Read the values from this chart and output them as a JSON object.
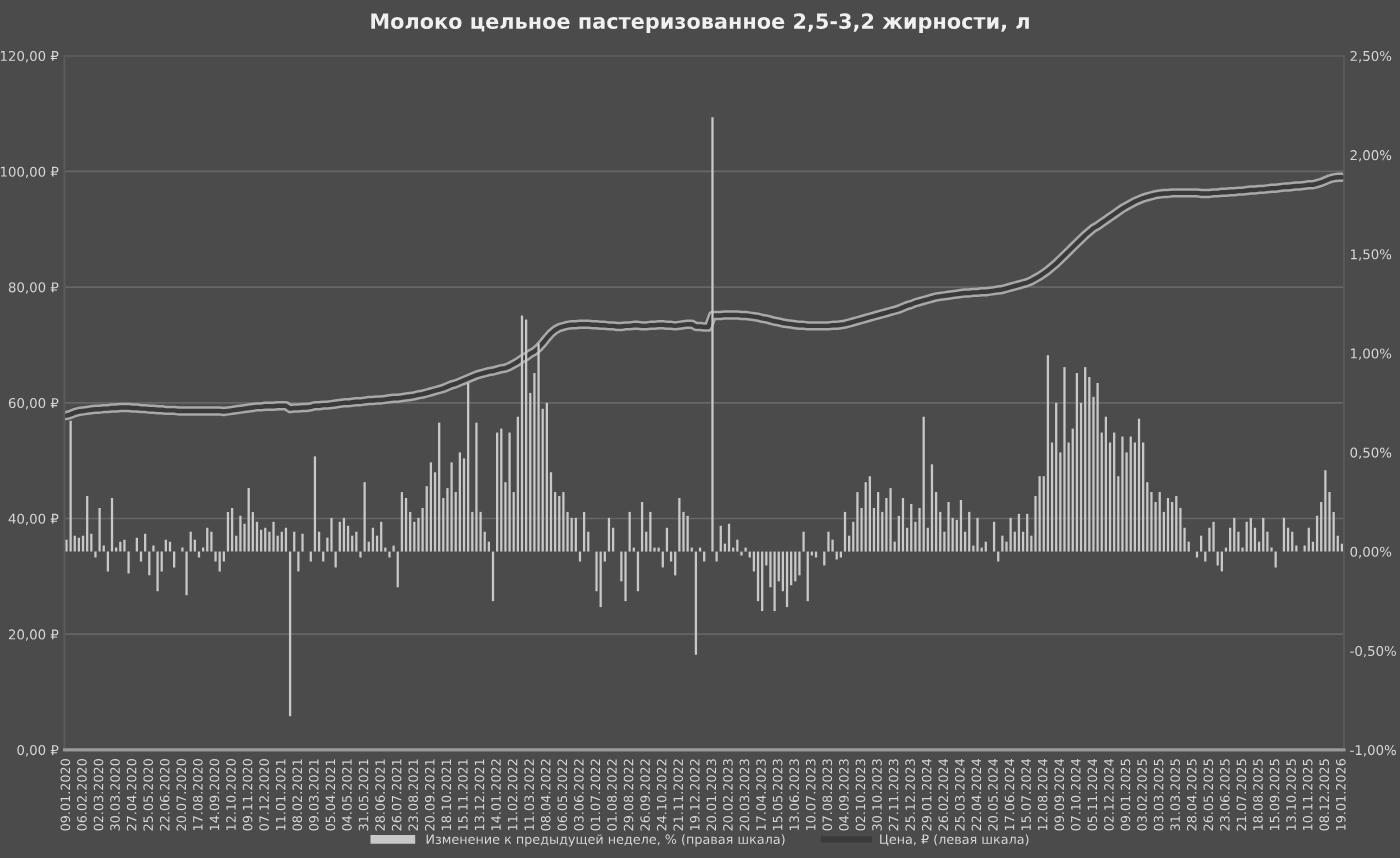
{
  "chart_data": {
    "type": "bar",
    "title": "Молоко цельное пастеризованное 2,5-3,2 жирности, л",
    "categories": [
      "09.01.2020",
      null,
      null,
      null,
      "06.02.2020",
      null,
      null,
      null,
      "02.03.2020",
      null,
      null,
      null,
      "30.03.2020",
      null,
      null,
      null,
      "27.04.2020",
      null,
      null,
      null,
      "25.05.2020",
      null,
      null,
      null,
      "22.06.2020",
      null,
      null,
      null,
      "20.07.2020",
      null,
      null,
      null,
      "17.08.2020",
      null,
      null,
      null,
      "14.09.2020",
      null,
      null,
      null,
      "12.10.2020",
      null,
      null,
      null,
      "09.11.2020",
      null,
      null,
      null,
      "07.12.2020",
      null,
      null,
      null,
      "11.01.2021",
      null,
      null,
      null,
      "08.02.2021",
      null,
      null,
      null,
      "09.03.2021",
      null,
      null,
      null,
      "05.04.2021",
      null,
      null,
      null,
      "04.05.2021",
      null,
      null,
      null,
      "31.05.2021",
      null,
      null,
      null,
      "28.06.2021",
      null,
      null,
      null,
      "26.07.2021",
      null,
      null,
      null,
      "23.08.2021",
      null,
      null,
      null,
      "20.09.2021",
      null,
      null,
      null,
      "18.10.2021",
      null,
      null,
      null,
      "15.11.2021",
      null,
      null,
      null,
      "13.12.2021",
      null,
      null,
      null,
      "14.01.2022",
      null,
      null,
      null,
      "11.02.2022",
      null,
      null,
      null,
      "11.03.2022",
      null,
      null,
      null,
      "08.04.2022",
      null,
      null,
      null,
      "06.05.2022",
      null,
      null,
      null,
      "03.06.2022",
      null,
      null,
      null,
      "01.07.2022",
      null,
      null,
      null,
      "01.08.2022",
      null,
      null,
      null,
      "29.08.2022",
      null,
      null,
      null,
      "26.09.2022",
      null,
      null,
      null,
      "24.10.2022",
      null,
      null,
      null,
      "21.11.2022",
      null,
      null,
      null,
      "19.12.2022",
      null,
      null,
      null,
      "20.01.2023",
      null,
      null,
      null,
      "20.02.2023",
      null,
      null,
      null,
      "20.03.2023",
      null,
      null,
      null,
      "17.04.2023",
      null,
      null,
      null,
      "15.05.2023",
      null,
      null,
      null,
      "13.06.2023",
      null,
      null,
      null,
      "10.07.2023",
      null,
      null,
      null,
      "07.08.2023",
      null,
      null,
      null,
      "04.09.2023",
      null,
      null,
      null,
      "02.10.2023",
      null,
      null,
      null,
      "30.10.2023",
      null,
      null,
      null,
      "27.11.2023",
      null,
      null,
      null,
      "25.12.2023",
      null,
      null,
      null,
      "29.01.2024",
      null,
      null,
      null,
      "26.02.2024",
      null,
      null,
      null,
      "25.03.2024",
      null,
      null,
      null,
      "22.04.2024",
      null,
      null,
      null,
      "20.05.2024",
      null,
      null,
      null,
      "17.06.2024",
      null,
      null,
      null,
      "15.07.2024",
      null,
      null,
      null,
      "12.08.2024",
      null,
      null,
      null,
      "09.09.2024",
      null,
      null,
      null,
      "07.10.2024",
      null,
      null,
      null,
      "05.11.2024",
      null,
      null,
      null,
      "02.12.2024",
      null,
      null,
      null,
      "09.01.2025",
      null,
      null,
      null,
      "03.02.2025",
      null,
      null,
      null,
      "03.03.2025",
      null,
      null,
      null,
      "31.03.2025",
      null,
      null,
      null,
      "28.04.2025",
      null,
      null,
      null,
      "26.05.2025",
      null,
      null,
      null,
      "23.06.2025",
      null,
      null,
      null,
      "21.07.2025",
      null,
      null,
      null,
      "18.08.2025",
      null,
      null,
      null,
      "15.09.2025",
      null,
      null,
      null,
      "13.10.2025",
      null,
      null,
      null,
      "10.11.2025",
      null,
      null,
      null,
      "08.12.2025",
      null,
      null,
      null,
      "19.01.2026"
    ],
    "series": [
      {
        "name": "Изменение к предыдущей неделе, % (правая шкала)",
        "axis": "y2",
        "color": "#c8c8c8",
        "values": [
          0.06,
          0.66,
          0.08,
          0.07,
          0.08,
          0.28,
          0.09,
          -0.03,
          0.22,
          0.03,
          -0.1,
          0.27,
          0.02,
          0.05,
          0.06,
          -0.11,
          0.0,
          0.07,
          -0.05,
          0.09,
          -0.12,
          0.03,
          -0.2,
          -0.1,
          0.06,
          0.05,
          -0.08,
          0.0,
          0.02,
          -0.22,
          0.1,
          0.06,
          -0.03,
          0.02,
          0.12,
          0.1,
          -0.05,
          -0.1,
          -0.05,
          0.2,
          0.22,
          0.08,
          0.18,
          0.14,
          0.32,
          0.2,
          0.15,
          0.11,
          0.12,
          0.1,
          0.15,
          0.08,
          0.1,
          0.12,
          -0.83,
          0.1,
          -0.1,
          0.09,
          0.0,
          -0.05,
          0.48,
          0.1,
          -0.05,
          0.07,
          0.17,
          -0.08,
          0.15,
          0.17,
          0.13,
          0.08,
          0.1,
          -0.03,
          0.35,
          0.05,
          0.12,
          0.08,
          0.15,
          0.02,
          -0.03,
          0.03,
          -0.18,
          0.3,
          0.27,
          0.2,
          0.15,
          0.17,
          0.22,
          0.33,
          0.45,
          0.4,
          0.65,
          0.27,
          0.32,
          0.45,
          0.3,
          0.5,
          0.47,
          0.85,
          0.2,
          0.65,
          0.2,
          0.1,
          0.05,
          -0.25,
          0.6,
          0.62,
          0.35,
          0.6,
          0.3,
          0.68,
          1.19,
          1.17,
          0.8,
          0.9,
          1.05,
          0.72,
          0.75,
          0.4,
          0.3,
          0.28,
          0.3,
          0.2,
          0.17,
          0.17,
          -0.05,
          0.2,
          0.1,
          0.0,
          -0.2,
          -0.28,
          -0.05,
          0.17,
          0.12,
          0.0,
          -0.15,
          -0.25,
          0.2,
          0.02,
          -0.2,
          0.25,
          0.1,
          0.2,
          0.02,
          0.02,
          -0.08,
          0.12,
          -0.05,
          -0.12,
          0.27,
          0.2,
          0.18,
          0.02,
          -0.52,
          0.02,
          -0.05,
          0.0,
          2.19,
          -0.05,
          0.13,
          0.04,
          0.14,
          0.02,
          0.06,
          -0.02,
          0.02,
          -0.03,
          -0.1,
          -0.25,
          -0.3,
          -0.07,
          -0.18,
          -0.3,
          -0.15,
          -0.2,
          -0.28,
          -0.17,
          -0.15,
          -0.12,
          0.1,
          -0.25,
          -0.02,
          -0.03,
          0.0,
          -0.07,
          0.1,
          0.06,
          -0.04,
          -0.03,
          0.2,
          0.08,
          0.15,
          0.3,
          0.22,
          0.35,
          0.38,
          0.22,
          0.3,
          0.2,
          0.27,
          0.32,
          0.05,
          0.18,
          0.27,
          0.12,
          0.24,
          0.15,
          0.22,
          0.68,
          0.12,
          0.44,
          0.3,
          0.2,
          0.1,
          0.25,
          0.17,
          0.16,
          0.26,
          0.1,
          0.2,
          0.03,
          0.17,
          0.02,
          0.05,
          0.0,
          0.15,
          -0.05,
          0.08,
          0.05,
          0.17,
          0.1,
          0.19,
          0.1,
          0.19,
          0.08,
          0.28,
          0.38,
          0.38,
          0.99,
          0.55,
          0.75,
          0.5,
          0.93,
          0.55,
          0.62,
          0.9,
          0.75,
          0.93,
          0.88,
          0.78,
          0.85,
          0.6,
          0.68,
          0.55,
          0.6,
          0.38,
          0.58,
          0.5,
          0.58,
          0.55,
          0.67,
          0.55,
          0.35,
          0.3,
          0.25,
          0.3,
          0.2,
          0.27,
          0.25,
          0.28,
          0.22,
          0.12,
          0.05,
          0.0,
          -0.03,
          0.08,
          -0.05,
          0.12,
          0.15,
          -0.07,
          -0.1,
          0.02,
          0.12,
          0.17,
          0.1,
          0.02,
          0.15,
          0.17,
          0.12,
          0.05,
          0.17,
          0.1,
          0.02,
          -0.08,
          0.0,
          0.17,
          0.12,
          0.1,
          0.03,
          0.0,
          0.03,
          0.12,
          0.05,
          0.18,
          0.25,
          0.41,
          0.3,
          0.2,
          0.08,
          0.04
        ]
      },
      {
        "name": "Цена, ₽ (левая шкала)",
        "type": "line",
        "color": "#3a3a3a",
        "values": [
          57.8,
          58.0,
          58.3,
          58.5,
          58.6,
          58.7,
          58.8,
          58.9,
          58.9,
          59.0,
          59.0,
          59.1,
          59.1,
          59.2,
          59.2,
          59.2,
          59.1,
          59.1,
          59.0,
          59.0,
          58.9,
          58.9,
          58.8,
          58.8,
          58.7,
          58.7,
          58.7,
          58.6,
          58.6,
          58.6,
          58.6,
          58.6,
          58.6,
          58.6,
          58.6,
          58.6,
          58.6,
          58.6,
          58.5,
          58.6,
          58.7,
          58.8,
          58.9,
          59.0,
          59.1,
          59.2,
          59.3,
          59.3,
          59.4,
          59.4,
          59.4,
          59.5,
          59.5,
          59.5,
          59.0,
          59.1,
          59.1,
          59.2,
          59.2,
          59.3,
          59.5,
          59.5,
          59.6,
          59.6,
          59.7,
          59.8,
          59.9,
          60.0,
          60.0,
          60.1,
          60.2,
          60.2,
          60.3,
          60.4,
          60.4,
          60.5,
          60.5,
          60.6,
          60.7,
          60.8,
          60.8,
          60.9,
          61.0,
          61.1,
          61.2,
          61.4,
          61.5,
          61.7,
          61.9,
          62.1,
          62.3,
          62.5,
          62.8,
          63.1,
          63.3,
          63.6,
          63.9,
          64.2,
          64.5,
          64.8,
          65.0,
          65.2,
          65.4,
          65.5,
          65.7,
          65.9,
          66.0,
          66.3,
          66.7,
          67.1,
          67.6,
          68.0,
          68.5,
          68.9,
          69.5,
          70.3,
          71.2,
          72.0,
          72.6,
          73.0,
          73.2,
          73.4,
          73.5,
          73.5,
          73.6,
          73.6,
          73.6,
          73.5,
          73.5,
          73.4,
          73.4,
          73.3,
          73.3,
          73.2,
          73.2,
          73.3,
          73.3,
          73.4,
          73.4,
          73.3,
          73.3,
          73.4,
          73.4,
          73.5,
          73.5,
          73.4,
          73.4,
          73.3,
          73.4,
          73.5,
          73.6,
          73.6,
          73.2,
          73.2,
          73.1,
          73.1,
          75.1,
          75.1,
          75.1,
          75.2,
          75.2,
          75.2,
          75.2,
          75.1,
          75.1,
          75.0,
          74.9,
          74.8,
          74.6,
          74.5,
          74.3,
          74.1,
          74.0,
          73.8,
          73.7,
          73.6,
          73.5,
          73.4,
          73.4,
          73.3,
          73.3,
          73.3,
          73.3,
          73.3,
          73.3,
          73.4,
          73.4,
          73.5,
          73.6,
          73.8,
          74.0,
          74.2,
          74.4,
          74.6,
          74.8,
          75.0,
          75.2,
          75.4,
          75.6,
          75.8,
          76.0,
          76.2,
          76.5,
          76.8,
          77.0,
          77.3,
          77.5,
          77.7,
          77.9,
          78.1,
          78.3,
          78.4,
          78.5,
          78.6,
          78.7,
          78.8,
          78.9,
          79.0,
          79.0,
          79.1,
          79.1,
          79.2,
          79.2,
          79.3,
          79.4,
          79.5,
          79.6,
          79.8,
          80.0,
          80.2,
          80.4,
          80.6,
          80.8,
          81.1,
          81.5,
          81.9,
          82.4,
          82.9,
          83.5,
          84.1,
          84.8,
          85.5,
          86.2,
          86.9,
          87.6,
          88.3,
          89.0,
          89.6,
          90.2,
          90.6,
          91.1,
          91.6,
          92.1,
          92.6,
          93.1,
          93.6,
          94.0,
          94.4,
          94.8,
          95.1,
          95.4,
          95.6,
          95.8,
          96.0,
          96.1,
          96.2,
          96.2,
          96.3,
          96.3,
          96.3,
          96.3,
          96.3,
          96.3,
          96.3,
          96.2,
          96.2,
          96.2,
          96.3,
          96.3,
          96.4,
          96.4,
          96.5,
          96.5,
          96.6,
          96.6,
          96.7,
          96.8,
          96.8,
          96.9,
          96.9,
          97.0,
          97.1,
          97.1,
          97.2,
          97.3,
          97.3,
          97.4,
          97.5,
          97.5,
          97.6,
          97.7,
          97.7,
          97.9,
          98.1,
          98.4,
          98.7,
          98.9,
          99.0,
          99.0
        ]
      }
    ],
    "ylim": [
      0,
      120
    ],
    "yticks": [
      {
        "value": 0,
        "label": "0,00 ₽"
      },
      {
        "value": 20,
        "label": "20,00 ₽"
      },
      {
        "value": 40,
        "label": "40,00 ₽"
      },
      {
        "value": 60,
        "label": "60,00 ₽"
      },
      {
        "value": 80,
        "label": "80,00 ₽"
      },
      {
        "value": 100,
        "label": "100,00 ₽"
      },
      {
        "value": 120,
        "label": "120,00 ₽"
      }
    ],
    "y2lim": [
      -1.0,
      2.5
    ],
    "y2ticks": [
      {
        "value": -1.0,
        "label": "-1,00%"
      },
      {
        "value": -0.5,
        "label": "-0,50%"
      },
      {
        "value": 0,
        "label": "0,00%"
      },
      {
        "value": 0.5,
        "label": "0,50%"
      },
      {
        "value": 1.0,
        "label": "1,00%"
      },
      {
        "value": 1.5,
        "label": "1,50%"
      },
      {
        "value": 2.0,
        "label": "2,00%"
      },
      {
        "value": 2.5,
        "label": "2,50%"
      }
    ],
    "grid": "y",
    "legend": "bottom"
  }
}
